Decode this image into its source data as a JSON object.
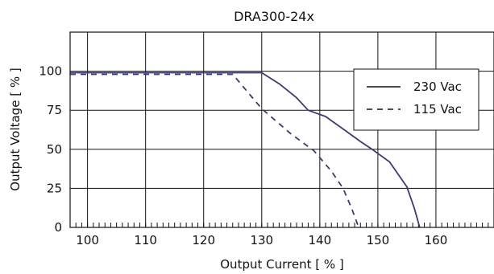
{
  "chart_data": {
    "type": "line",
    "title": "DRA300-24x",
    "xlabel": "Output Current [ % ]",
    "ylabel": "Output Voltage  [ % ]",
    "xlim": [
      97,
      170
    ],
    "ylim": [
      0,
      125
    ],
    "x_ticks": [
      100,
      110,
      120,
      130,
      140,
      150,
      160
    ],
    "y_ticks": [
      0,
      25,
      50,
      75,
      100
    ],
    "grid": true,
    "legend": "right",
    "series": [
      {
        "name": "230 Vac",
        "style": "solid",
        "color": "#3a3a7a",
        "points": [
          [
            97,
            99
          ],
          [
            130,
            99
          ],
          [
            133,
            92
          ],
          [
            136,
            83
          ],
          [
            138,
            75
          ],
          [
            141,
            71
          ],
          [
            144,
            63
          ],
          [
            147,
            55
          ],
          [
            149,
            50
          ],
          [
            152,
            42
          ],
          [
            155,
            26
          ],
          [
            156.3,
            12
          ],
          [
            157.2,
            0
          ]
        ]
      },
      {
        "name": "115 Vac",
        "style": "dashed",
        "color": "#3a3a7a",
        "points": [
          [
            97,
            98
          ],
          [
            125,
            98
          ],
          [
            127.5,
            87
          ],
          [
            130,
            76
          ],
          [
            135,
            60
          ],
          [
            139,
            49
          ],
          [
            142,
            36
          ],
          [
            144,
            25
          ],
          [
            145.5,
            12
          ],
          [
            146.7,
            0
          ]
        ]
      }
    ]
  }
}
